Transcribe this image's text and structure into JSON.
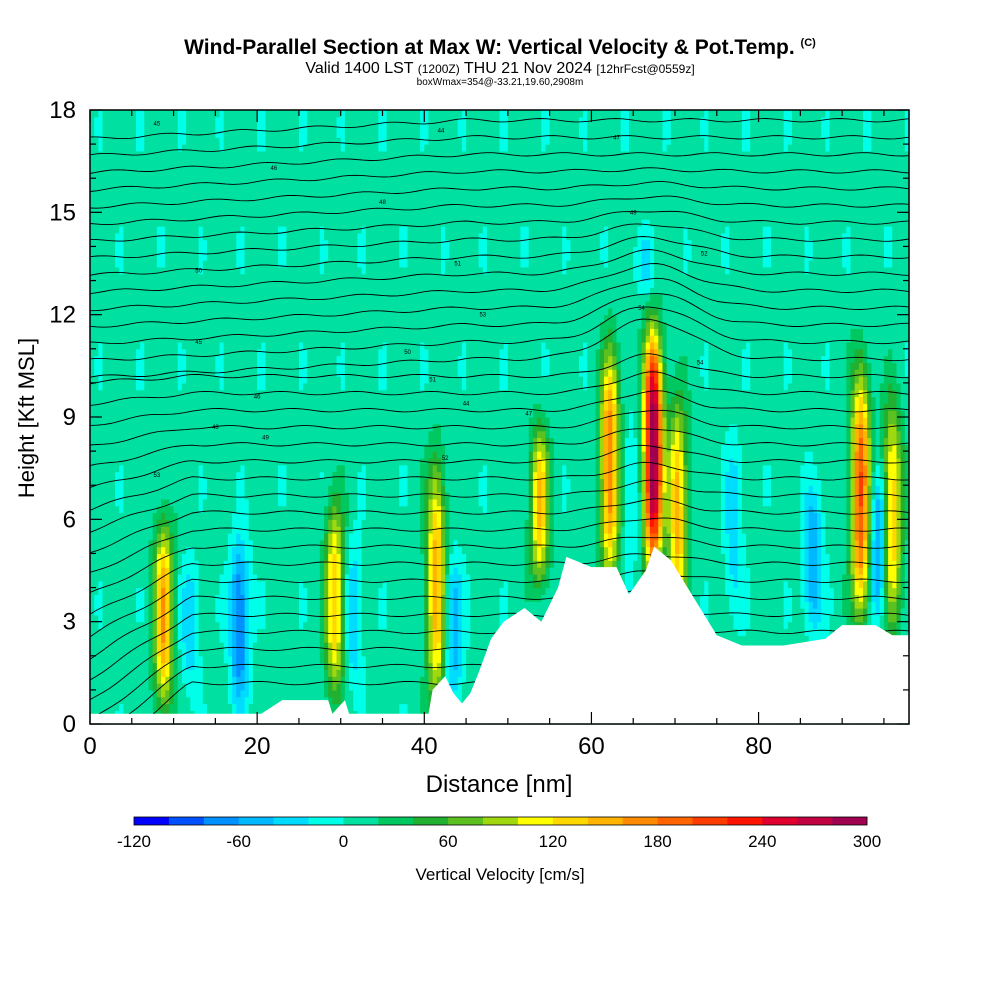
{
  "header": {
    "title_main": "Wind-Parallel Section at Max W: Vertical Velocity & Pot.Temp.",
    "title_copyright": "(C)",
    "valid_prefix": "Valid 1400 LST",
    "valid_utc": "(1200Z)",
    "valid_date": "THU 21 Nov 2024",
    "forecast_info": "[12hrFcst@0559z]",
    "box_info": "boxWmax=354@-33.21,19.60,2908m"
  },
  "chart_data": {
    "type": "heatmap",
    "xlabel": "Distance [nm]",
    "ylabel": "Height [Kft MSL]",
    "xlim": [
      0,
      98
    ],
    "ylim": [
      0,
      18
    ],
    "x_ticks": [
      0,
      20,
      40,
      60,
      80
    ],
    "y_ticks": [
      0,
      3,
      6,
      9,
      12,
      15,
      18
    ],
    "colorbar": {
      "label": "Vertical Velocity [cm/s]",
      "min": -120,
      "max": 300,
      "step": 20,
      "tick_labels": [
        -120,
        -60,
        0,
        60,
        120,
        180,
        240,
        300
      ],
      "colors": [
        "#0000ff",
        "#0050ff",
        "#0090ff",
        "#00b8ff",
        "#00dcff",
        "#00ffe8",
        "#00e0a0",
        "#00c860",
        "#22b030",
        "#5cc020",
        "#a0d810",
        "#ffff00",
        "#ffd800",
        "#ffb400",
        "#ff8c00",
        "#ff6400",
        "#ff3c00",
        "#ff1400",
        "#e00030",
        "#c00040",
        "#a00050"
      ]
    },
    "background_w": 8,
    "updrafts": [
      {
        "x": 8.8,
        "peak": 150,
        "base": 0.3,
        "top": 6.0
      },
      {
        "x": 29.3,
        "peak": 130,
        "base": 0.8,
        "top": 6.5
      },
      {
        "x": 41.4,
        "peak": 140,
        "base": 0.5,
        "top": 7.8
      },
      {
        "x": 53.8,
        "peak": 130,
        "base": 4.0,
        "top": 8.8
      },
      {
        "x": 62.2,
        "peak": 170,
        "base": 4.2,
        "top": 11.0
      },
      {
        "x": 67.4,
        "peak": 300,
        "base": 4.5,
        "top": 11.5
      },
      {
        "x": 70.3,
        "peak": 140,
        "base": 3.0,
        "top": 9.5
      },
      {
        "x": 92.2,
        "peak": 190,
        "base": 3.0,
        "top": 10.5
      },
      {
        "x": 96.0,
        "peak": 130,
        "base": 2.8,
        "top": 9.5
      }
    ],
    "downdrafts": [
      {
        "x": 17.9,
        "trough": -90,
        "base": 0.5,
        "top": 5.5
      },
      {
        "x": 12.0,
        "trough": -40,
        "base": 0.8,
        "top": 5.0
      },
      {
        "x": 31.5,
        "trough": -45,
        "base": 1.0,
        "top": 5.5
      },
      {
        "x": 43.5,
        "trough": -60,
        "base": 0.5,
        "top": 5.0
      },
      {
        "x": 64.7,
        "trough": -30,
        "base": 4.5,
        "top": 9.0
      },
      {
        "x": 77.0,
        "trough": -40,
        "base": 3.0,
        "top": 8.5
      },
      {
        "x": 86.5,
        "trough": -70,
        "base": 2.5,
        "top": 7.0
      },
      {
        "x": 94.4,
        "trough": -80,
        "base": 3.0,
        "top": 7.5
      },
      {
        "x": 66.5,
        "trough": -35,
        "base": 12.5,
        "top": 14.5
      }
    ],
    "terrain": [
      [
        0,
        0.3
      ],
      [
        20.5,
        0.3
      ],
      [
        23,
        0.7
      ],
      [
        28.5,
        0.7
      ],
      [
        29,
        0.3
      ],
      [
        30.5,
        0.7
      ],
      [
        31,
        0.3
      ],
      [
        40.5,
        0.3
      ],
      [
        41,
        1.0
      ],
      [
        42.5,
        1.4
      ],
      [
        43.5,
        0.9
      ],
      [
        44.5,
        0.6
      ],
      [
        45.5,
        0.9
      ],
      [
        46.5,
        1.5
      ],
      [
        48,
        2.5
      ],
      [
        49.5,
        3.0
      ],
      [
        52,
        3.4
      ],
      [
        54,
        3.0
      ],
      [
        56,
        4.0
      ],
      [
        57,
        4.9
      ],
      [
        60,
        4.6
      ],
      [
        63,
        4.6
      ],
      [
        64.5,
        3.8
      ],
      [
        66.5,
        4.5
      ],
      [
        67.5,
        5.2
      ],
      [
        69.5,
        4.8
      ],
      [
        72,
        3.8
      ],
      [
        75,
        2.6
      ],
      [
        78,
        2.3
      ],
      [
        83,
        2.3
      ],
      [
        88,
        2.5
      ],
      [
        90,
        2.9
      ],
      [
        94,
        2.9
      ],
      [
        96,
        2.6
      ],
      [
        98,
        2.6
      ]
    ],
    "theta_labels": [
      "45",
      "46",
      "44",
      "47",
      "48",
      "49",
      "50",
      "51",
      "52",
      "53",
      "54"
    ]
  }
}
